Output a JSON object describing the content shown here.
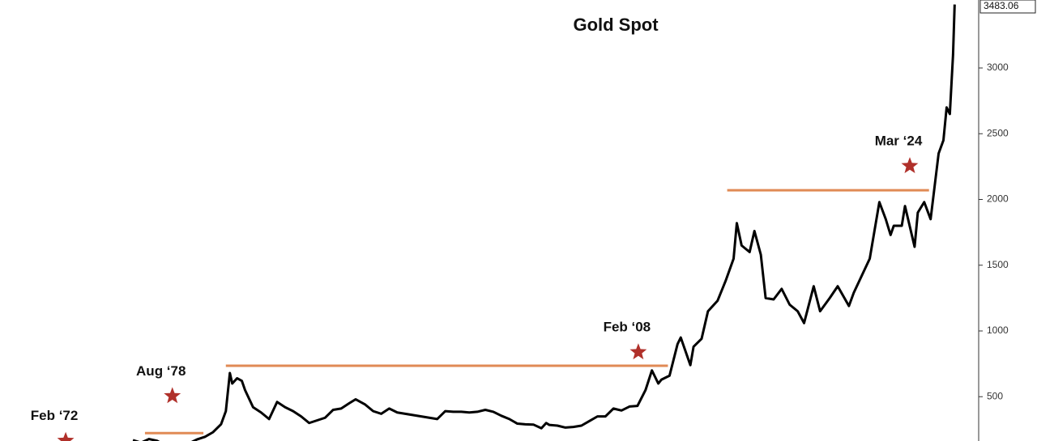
{
  "chart_data": {
    "type": "line",
    "title": "Gold Spot",
    "x": [
      1974.0,
      1974.5,
      1975.0,
      1975.5,
      1976.0,
      1976.5,
      1977.0,
      1977.5,
      1978.0,
      1978.5,
      1979.0,
      1979.5,
      1979.8,
      1980.05,
      1980.2,
      1980.5,
      1980.8,
      1981.0,
      1981.5,
      1982.0,
      1982.5,
      1983.0,
      1983.5,
      1984.0,
      1984.5,
      1985.0,
      1985.5,
      1986.0,
      1986.5,
      1987.0,
      1987.5,
      1987.9,
      1988.5,
      1989.0,
      1989.5,
      1990.0,
      1990.5,
      1991.0,
      1991.5,
      1992.0,
      1992.5,
      1993.0,
      1993.5,
      1994.0,
      1994.5,
      1995.0,
      1995.5,
      1996.0,
      1996.5,
      1997.0,
      1997.5,
      1998.0,
      1998.5,
      1999.0,
      1999.5,
      1999.8,
      2000.0,
      2000.5,
      2001.0,
      2001.5,
      2002.0,
      2002.5,
      2003.0,
      2003.5,
      2004.0,
      2004.5,
      2005.0,
      2005.5,
      2006.0,
      2006.4,
      2006.8,
      2007.0,
      2007.5,
      2008.0,
      2008.2,
      2008.8,
      2009.0,
      2009.5,
      2009.9,
      2010.5,
      2011.0,
      2011.5,
      2011.7,
      2012.0,
      2012.5,
      2012.8,
      2013.2,
      2013.5,
      2014.0,
      2014.5,
      2015.0,
      2015.5,
      2015.9,
      2016.5,
      2016.9,
      2017.5,
      2018.0,
      2018.7,
      2019.0,
      2019.5,
      2020.0,
      2020.6,
      2021.0,
      2021.3,
      2021.5,
      2022.0,
      2022.2,
      2022.8,
      2023.0,
      2023.4,
      2023.8,
      2024.0,
      2024.3,
      2024.6,
      2024.8,
      2025.0,
      2025.2,
      2025.3
    ],
    "series": [
      {
        "name": "Gold Spot",
        "color": "#000000",
        "values": [
          170,
          150,
          178,
          165,
          130,
          115,
          135,
          145,
          175,
          195,
          230,
          290,
          390,
          680,
          600,
          640,
          620,
          550,
          420,
          380,
          330,
          460,
          420,
          390,
          350,
          300,
          320,
          340,
          400,
          410,
          450,
          480,
          440,
          390,
          370,
          410,
          380,
          370,
          360,
          350,
          340,
          330,
          390,
          385,
          385,
          380,
          385,
          400,
          385,
          355,
          330,
          295,
          290,
          288,
          260,
          300,
          285,
          280,
          265,
          270,
          280,
          315,
          350,
          350,
          410,
          395,
          425,
          430,
          550,
          700,
          600,
          630,
          660,
          900,
          950,
          740,
          880,
          940,
          1150,
          1230,
          1380,
          1550,
          1820,
          1650,
          1600,
          1760,
          1580,
          1250,
          1240,
          1320,
          1200,
          1150,
          1060,
          1340,
          1150,
          1250,
          1340,
          1190,
          1290,
          1420,
          1550,
          1980,
          1850,
          1730,
          1800,
          1800,
          1950,
          1640,
          1900,
          1980,
          1850,
          2050,
          2350,
          2450,
          2700,
          2650,
          3100,
          3483.06
        ]
      }
    ],
    "last_value": 3483.06,
    "xlim": [
      1965.7,
      2026.8
    ],
    "ylim": [
      163,
      3517
    ],
    "yticks": [
      500,
      1000,
      1500,
      2000,
      2500,
      3000
    ],
    "reference_lines": [
      {
        "value": 223,
        "x": [
          1974.75,
          1978.4
        ],
        "color": "#e08a55"
      },
      {
        "value": 735,
        "x": [
          1979.8,
          2007.4
        ],
        "color": "#e08a55"
      },
      {
        "value": 2070,
        "x": [
          2011.1,
          2023.7
        ],
        "color": "#e08a55"
      }
    ],
    "annotations": [
      {
        "label": "Feb ‘72",
        "x": 1969.8,
        "y": 165
      },
      {
        "label": "Aug ‘78",
        "x": 1976.46,
        "y": 505
      },
      {
        "label": "Feb ‘08",
        "x": 2005.55,
        "y": 839
      },
      {
        "label": "Mar ‘24",
        "x": 2022.5,
        "y": 2255
      }
    ],
    "marker_color": "#b0302a"
  }
}
